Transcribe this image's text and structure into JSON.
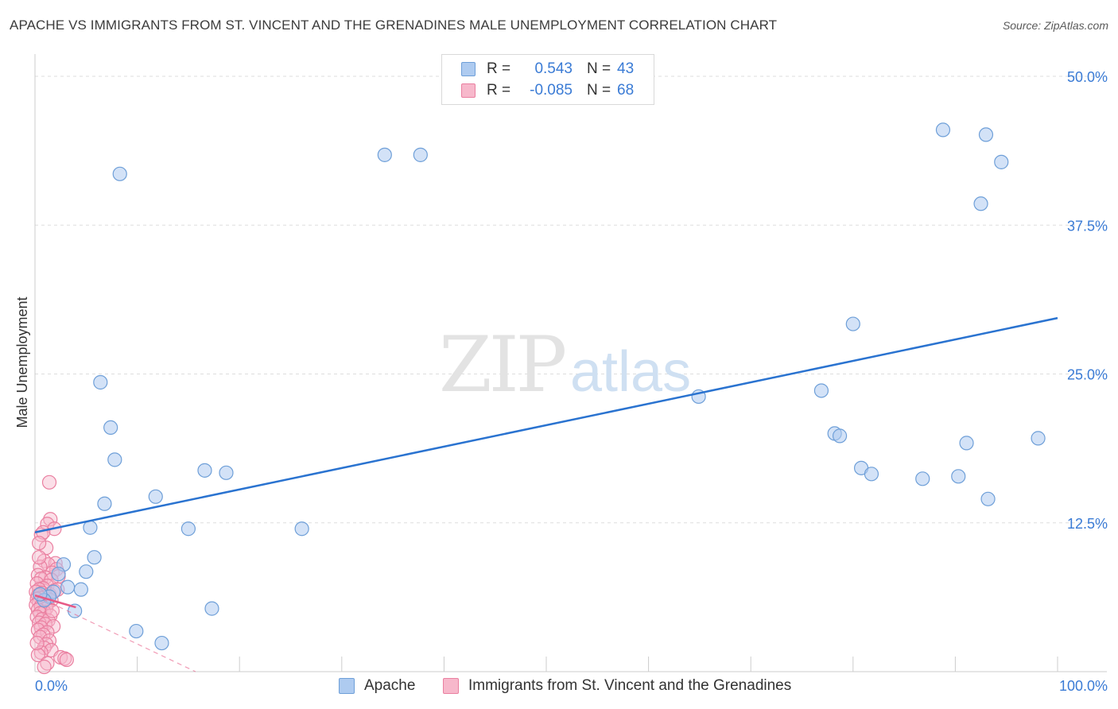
{
  "title": "APACHE VS IMMIGRANTS FROM ST. VINCENT AND THE GRENADINES MALE UNEMPLOYMENT CORRELATION CHART",
  "source": "Source: ZipAtlas.com",
  "watermark": {
    "zip": "ZIP",
    "atlas": "atlas"
  },
  "legend": {
    "rows": [
      {
        "r_label": "R =",
        "r_value": "0.543",
        "n_label": "N =",
        "n_value": "43"
      },
      {
        "r_label": "R =",
        "r_value": "-0.085",
        "n_label": "N =",
        "n_value": "68"
      }
    ]
  },
  "bottom_legend": {
    "series1": "Apache",
    "series2": "Immigrants from St. Vincent and the Grenadines"
  },
  "colors": {
    "apache_fill": "#aecbf0",
    "apache_stroke": "#6e9fd8",
    "apache_line": "#2a73d0",
    "svg_fill": "#f7b8cb",
    "svg_stroke": "#ea7fa0",
    "svg_line": "#e75a86",
    "tick_label": "#3a7bd5",
    "grid": "#dddddd"
  },
  "chart_data": {
    "type": "scatter",
    "title": "APACHE VS IMMIGRANTS FROM ST. VINCENT AND THE GRENADINES MALE UNEMPLOYMENT CORRELATION CHART",
    "xlabel": "",
    "ylabel": "Male Unemployment",
    "xlim": [
      0,
      100
    ],
    "ylim": [
      0,
      50
    ],
    "x_tick_labels": [
      {
        "value": 0,
        "label": "0.0%"
      },
      {
        "value": 100,
        "label": "100.0%"
      }
    ],
    "y_tick_labels": [
      {
        "value": 12.5,
        "label": "12.5%"
      },
      {
        "value": 25,
        "label": "25.0%"
      },
      {
        "value": 37.5,
        "label": "37.5%"
      },
      {
        "value": 50,
        "label": "50.0%"
      }
    ],
    "grid": true,
    "series": [
      {
        "name": "Apache",
        "r": 0.543,
        "n": 43,
        "trend": {
          "x": [
            0,
            100
          ],
          "y": [
            11.7,
            29.7
          ],
          "style": "solid"
        },
        "points": [
          {
            "x": 8.3,
            "y": 41.8
          },
          {
            "x": 34.2,
            "y": 43.4
          },
          {
            "x": 37.7,
            "y": 43.4
          },
          {
            "x": 88.8,
            "y": 45.5
          },
          {
            "x": 93.0,
            "y": 45.1
          },
          {
            "x": 94.5,
            "y": 42.8
          },
          {
            "x": 92.5,
            "y": 39.3
          },
          {
            "x": 80.0,
            "y": 29.2
          },
          {
            "x": 6.4,
            "y": 24.3
          },
          {
            "x": 7.4,
            "y": 20.5
          },
          {
            "x": 7.8,
            "y": 17.8
          },
          {
            "x": 64.9,
            "y": 23.1
          },
          {
            "x": 76.9,
            "y": 23.6
          },
          {
            "x": 78.2,
            "y": 20.0
          },
          {
            "x": 78.7,
            "y": 19.8
          },
          {
            "x": 91.1,
            "y": 19.2
          },
          {
            "x": 98.1,
            "y": 19.6
          },
          {
            "x": 80.8,
            "y": 17.1
          },
          {
            "x": 81.8,
            "y": 16.6
          },
          {
            "x": 86.8,
            "y": 16.2
          },
          {
            "x": 90.3,
            "y": 16.4
          },
          {
            "x": 93.2,
            "y": 14.5
          },
          {
            "x": 16.6,
            "y": 16.9
          },
          {
            "x": 18.7,
            "y": 16.7
          },
          {
            "x": 11.8,
            "y": 14.7
          },
          {
            "x": 6.8,
            "y": 14.1
          },
          {
            "x": 5.4,
            "y": 12.1
          },
          {
            "x": 15.0,
            "y": 12.0
          },
          {
            "x": 26.1,
            "y": 12.0
          },
          {
            "x": 5.8,
            "y": 9.6
          },
          {
            "x": 2.8,
            "y": 9.0
          },
          {
            "x": 5.0,
            "y": 8.4
          },
          {
            "x": 2.3,
            "y": 8.2
          },
          {
            "x": 3.2,
            "y": 7.1
          },
          {
            "x": 4.5,
            "y": 6.9
          },
          {
            "x": 1.8,
            "y": 6.7
          },
          {
            "x": 1.4,
            "y": 6.3
          },
          {
            "x": 0.9,
            "y": 6.0
          },
          {
            "x": 3.9,
            "y": 5.1
          },
          {
            "x": 17.3,
            "y": 5.3
          },
          {
            "x": 9.9,
            "y": 3.4
          },
          {
            "x": 12.4,
            "y": 2.4
          },
          {
            "x": 0.5,
            "y": 6.5
          }
        ]
      },
      {
        "name": "Immigrants from St. Vincent and the Grenadines",
        "r": -0.085,
        "n": 68,
        "trend": {
          "x": [
            0,
            4
          ],
          "y": [
            6.4,
            5.4
          ],
          "style": "solid"
        },
        "trend_extended": {
          "x": [
            0,
            15.7
          ],
          "y": [
            6.4,
            0
          ],
          "style": "dashed"
        },
        "points": [
          {
            "x": 1.4,
            "y": 15.9
          },
          {
            "x": 1.5,
            "y": 12.8
          },
          {
            "x": 1.2,
            "y": 12.4
          },
          {
            "x": 1.9,
            "y": 12.0
          },
          {
            "x": 0.6,
            "y": 11.5
          },
          {
            "x": 0.8,
            "y": 11.7
          },
          {
            "x": 1.1,
            "y": 10.4
          },
          {
            "x": 0.4,
            "y": 10.8
          },
          {
            "x": 0.9,
            "y": 9.3
          },
          {
            "x": 2.0,
            "y": 9.1
          },
          {
            "x": 1.3,
            "y": 9.0
          },
          {
            "x": 0.5,
            "y": 8.8
          },
          {
            "x": 2.1,
            "y": 8.6
          },
          {
            "x": 1.7,
            "y": 8.3
          },
          {
            "x": 0.3,
            "y": 8.1
          },
          {
            "x": 2.3,
            "y": 8.0
          },
          {
            "x": 1.0,
            "y": 7.9
          },
          {
            "x": 0.6,
            "y": 7.8
          },
          {
            "x": 1.6,
            "y": 7.7
          },
          {
            "x": 0.2,
            "y": 7.4
          },
          {
            "x": 1.2,
            "y": 7.2
          },
          {
            "x": 0.8,
            "y": 7.0
          },
          {
            "x": 0.4,
            "y": 6.9
          },
          {
            "x": 1.9,
            "y": 6.8
          },
          {
            "x": 0.1,
            "y": 6.7
          },
          {
            "x": 0.7,
            "y": 6.6
          },
          {
            "x": 1.4,
            "y": 6.5
          },
          {
            "x": 0.3,
            "y": 6.4
          },
          {
            "x": 1.0,
            "y": 6.3
          },
          {
            "x": 0.5,
            "y": 6.2
          },
          {
            "x": 0.2,
            "y": 6.1
          },
          {
            "x": 1.6,
            "y": 6.0
          },
          {
            "x": 0.8,
            "y": 5.9
          },
          {
            "x": 0.4,
            "y": 5.8
          },
          {
            "x": 1.2,
            "y": 5.7
          },
          {
            "x": 0.1,
            "y": 5.6
          },
          {
            "x": 0.6,
            "y": 5.5
          },
          {
            "x": 1.1,
            "y": 5.3
          },
          {
            "x": 0.3,
            "y": 5.2
          },
          {
            "x": 0.9,
            "y": 5.0
          },
          {
            "x": 0.5,
            "y": 4.9
          },
          {
            "x": 1.5,
            "y": 4.7
          },
          {
            "x": 0.2,
            "y": 4.6
          },
          {
            "x": 0.7,
            "y": 4.4
          },
          {
            "x": 1.3,
            "y": 4.3
          },
          {
            "x": 0.4,
            "y": 4.1
          },
          {
            "x": 1.0,
            "y": 4.0
          },
          {
            "x": 1.8,
            "y": 3.8
          },
          {
            "x": 0.6,
            "y": 3.7
          },
          {
            "x": 0.3,
            "y": 3.5
          },
          {
            "x": 1.2,
            "y": 3.3
          },
          {
            "x": 0.8,
            "y": 3.1
          },
          {
            "x": 0.5,
            "y": 2.9
          },
          {
            "x": 1.4,
            "y": 2.6
          },
          {
            "x": 1.1,
            "y": 2.3
          },
          {
            "x": 0.9,
            "y": 2.0
          },
          {
            "x": 1.6,
            "y": 1.8
          },
          {
            "x": 0.6,
            "y": 1.6
          },
          {
            "x": 0.3,
            "y": 1.4
          },
          {
            "x": 2.5,
            "y": 1.2
          },
          {
            "x": 2.9,
            "y": 1.1
          },
          {
            "x": 3.1,
            "y": 1.0
          },
          {
            "x": 1.2,
            "y": 0.7
          },
          {
            "x": 0.9,
            "y": 0.4
          },
          {
            "x": 0.2,
            "y": 2.4
          },
          {
            "x": 1.7,
            "y": 5.1
          },
          {
            "x": 2.2,
            "y": 6.9
          },
          {
            "x": 0.4,
            "y": 9.6
          }
        ]
      }
    ]
  }
}
